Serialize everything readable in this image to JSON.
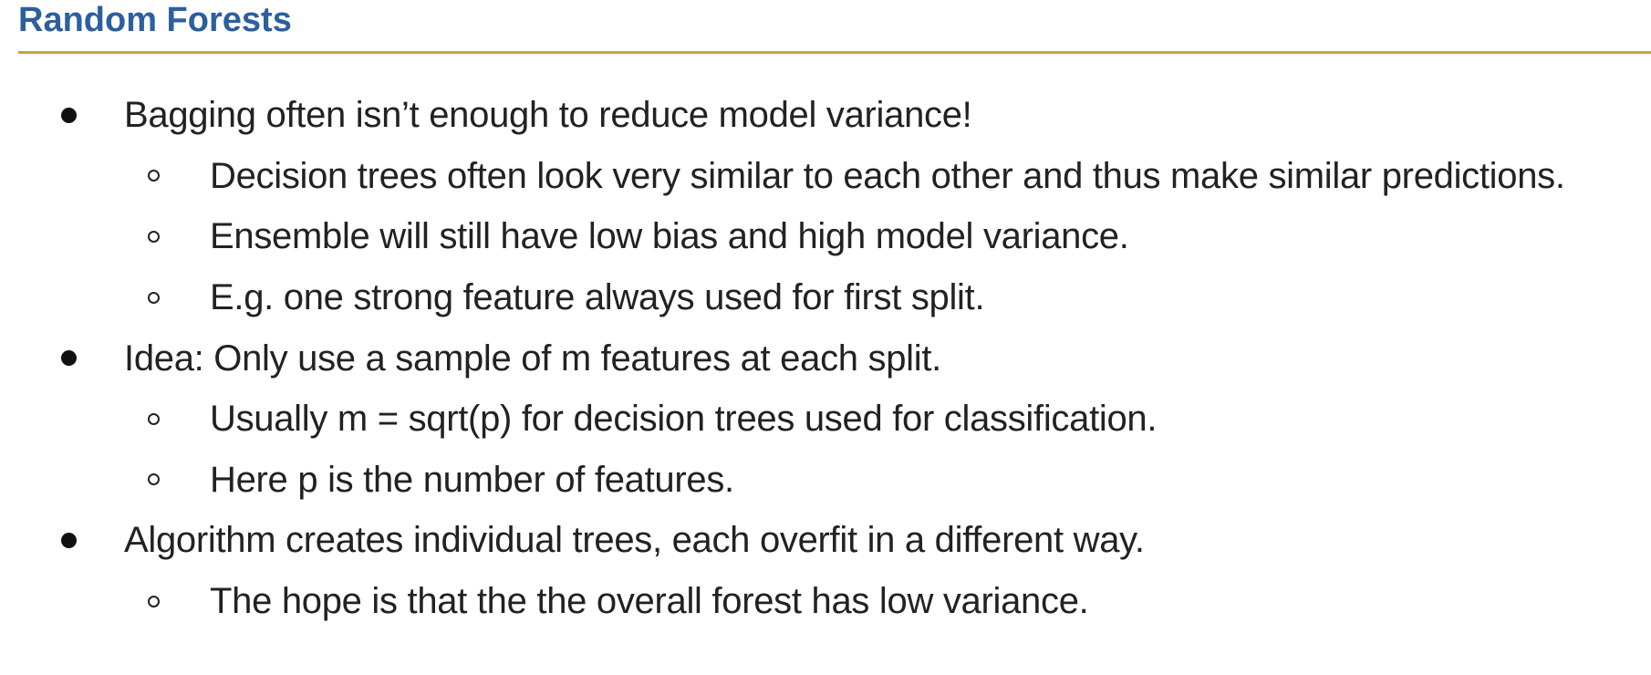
{
  "slide": {
    "title": "Random Forests",
    "colors": {
      "title": "#2c5f9e",
      "rule": "#c9a23d",
      "text": "#222222"
    },
    "bullets": [
      {
        "level": 1,
        "text": "Bagging often isn’t enough to reduce model variance!"
      },
      {
        "level": 2,
        "text": "Decision trees often look very similar to each other and thus make similar predictions."
      },
      {
        "level": 2,
        "text": "Ensemble will still have low bias and high model variance."
      },
      {
        "level": 2,
        "text": "E.g. one strong feature always used for first split."
      },
      {
        "level": 1,
        "text": "Idea: Only use a sample of m features at each split."
      },
      {
        "level": 2,
        "text": "Usually m = sqrt(p) for decision trees used for classification."
      },
      {
        "level": 2,
        "text": "Here p is the number of features."
      },
      {
        "level": 1,
        "text": "Algorithm creates individual trees, each overfit in a different way."
      },
      {
        "level": 2,
        "text": "The hope is that the the overall forest has low variance."
      }
    ]
  }
}
